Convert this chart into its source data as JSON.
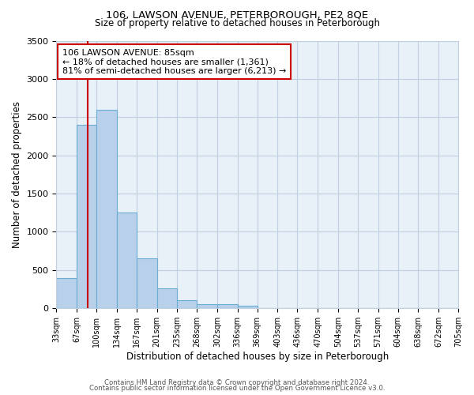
{
  "title": "106, LAWSON AVENUE, PETERBOROUGH, PE2 8QE",
  "subtitle": "Size of property relative to detached houses in Peterborough",
  "xlabel": "Distribution of detached houses by size in Peterborough",
  "ylabel": "Number of detached properties",
  "bar_values": [
    390,
    2400,
    2600,
    1250,
    650,
    260,
    100,
    55,
    50,
    30,
    0,
    0,
    0,
    0,
    0,
    0,
    0,
    0,
    0,
    0
  ],
  "bar_labels": [
    "33sqm",
    "67sqm",
    "100sqm",
    "134sqm",
    "167sqm",
    "201sqm",
    "235sqm",
    "268sqm",
    "302sqm",
    "336sqm",
    "369sqm",
    "403sqm",
    "436sqm",
    "470sqm",
    "504sqm",
    "537sqm",
    "571sqm",
    "604sqm",
    "638sqm",
    "672sqm",
    "705sqm"
  ],
  "ylim": [
    0,
    3500
  ],
  "yticks": [
    0,
    500,
    1000,
    1500,
    2000,
    2500,
    3000,
    3500
  ],
  "bar_color": "#b8d0ea",
  "bar_edge_color": "#6aaed6",
  "vline_x_idx": 1.53,
  "vline_color": "#cc0000",
  "annotation_text": "106 LAWSON AVENUE: 85sqm\n← 18% of detached houses are smaller (1,361)\n81% of semi-detached houses are larger (6,213) →",
  "annotation_box_color": "#ffffff",
  "annotation_box_edge": "#cc0000",
  "footer_line1": "Contains HM Land Registry data © Crown copyright and database right 2024.",
  "footer_line2": "Contains public sector information licensed under the Open Government Licence v3.0.",
  "bg_color": "#ffffff",
  "plot_bg_color": "#e8f0f8",
  "grid_color": "#c0d0e0",
  "bin_edges": [
    33,
    67,
    100,
    134,
    167,
    201,
    235,
    268,
    302,
    336,
    369,
    403,
    436,
    470,
    504,
    537,
    571,
    604,
    638,
    672,
    705
  ]
}
